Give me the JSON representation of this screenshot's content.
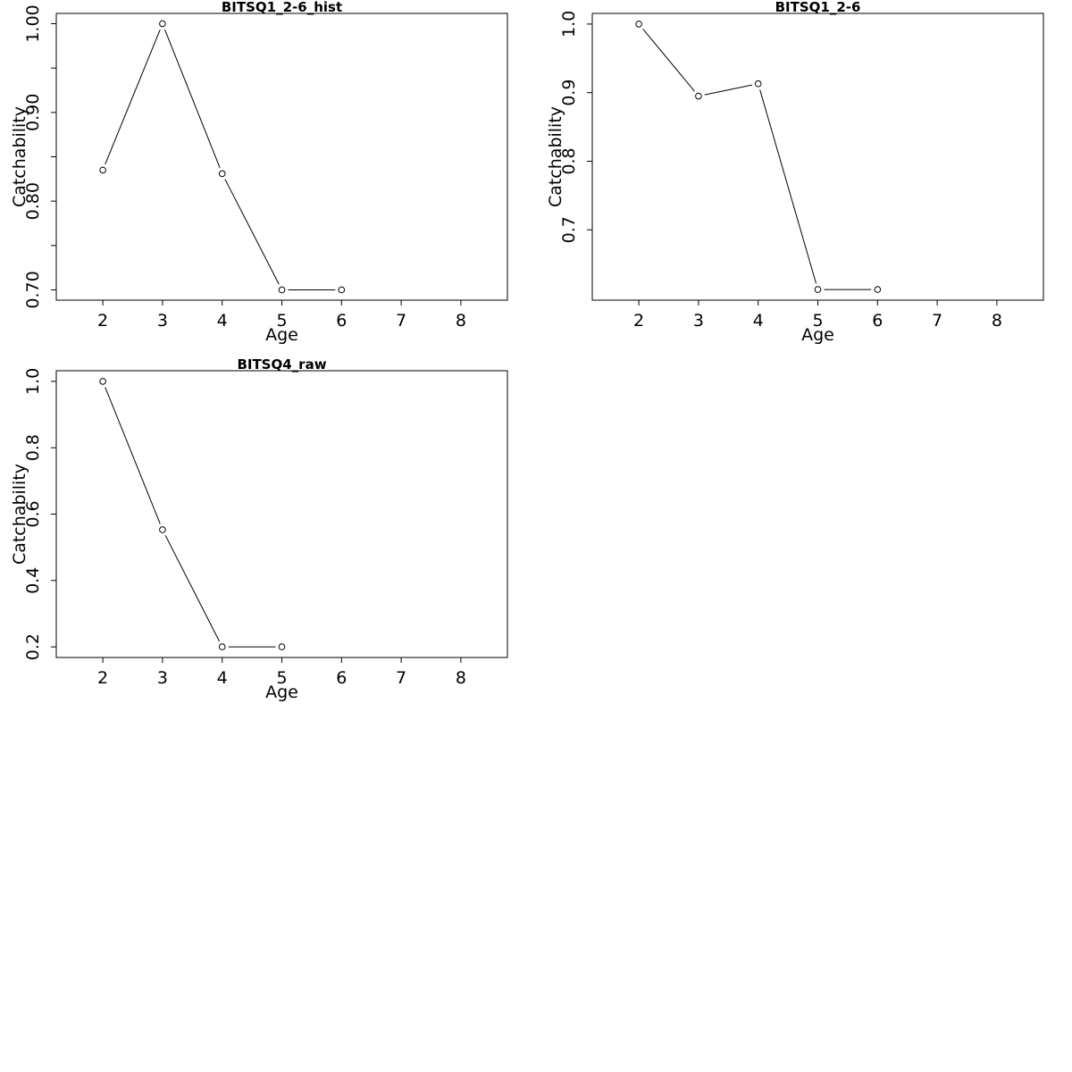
{
  "chart_data": [
    {
      "type": "line",
      "title": "BITSQ1_2-6_hist",
      "xlabel": "Age",
      "ylabel": "Catchability",
      "xlim": [
        1.22,
        8.78
      ],
      "ylim": [
        0.6884,
        1.0116
      ],
      "x_ticks": [
        "2",
        "3",
        "4",
        "5",
        "6",
        "7",
        "8"
      ],
      "y_ticks": [
        "0.70",
        "0.80",
        "0.90",
        "1.00"
      ],
      "y_tick_values": [
        0.7,
        0.8,
        0.9,
        1.0
      ],
      "y_minor_tick_values": [
        0.75,
        0.85,
        0.95
      ],
      "x": [
        2,
        3,
        4,
        5,
        6
      ],
      "y": [
        0.835,
        1.0,
        0.831,
        0.7,
        0.7
      ]
    },
    {
      "type": "line",
      "title": "BITSQ1_2-6",
      "xlabel": "Age",
      "ylabel": "Catchability",
      "xlim": [
        1.22,
        8.78
      ],
      "ylim": [
        0.5975,
        1.0155
      ],
      "x_ticks": [
        "2",
        "3",
        "4",
        "5",
        "6",
        "7",
        "8"
      ],
      "y_ticks": [
        "0.7",
        "0.8",
        "0.9",
        "1.0"
      ],
      "y_tick_values": [
        0.7,
        0.8,
        0.9,
        1.0
      ],
      "y_minor_tick_values": [],
      "x": [
        2,
        3,
        4,
        5,
        6
      ],
      "y": [
        1.0,
        0.895,
        0.913,
        0.613,
        0.613
      ]
    },
    {
      "type": "line",
      "title": "BITSQ4_raw",
      "xlabel": "Age",
      "ylabel": "Catchability",
      "xlim": [
        1.22,
        8.78
      ],
      "ylim": [
        0.168,
        1.032
      ],
      "x_ticks": [
        "2",
        "3",
        "4",
        "5",
        "6",
        "7",
        "8"
      ],
      "y_ticks": [
        "0.2",
        "0.4",
        "0.6",
        "0.8",
        "1.0"
      ],
      "y_tick_values": [
        0.2,
        0.4,
        0.6,
        0.8,
        1.0
      ],
      "y_minor_tick_values": [],
      "x": [
        2,
        3,
        4,
        5
      ],
      "y": [
        1.0,
        0.553,
        0.2,
        0.2
      ]
    }
  ]
}
